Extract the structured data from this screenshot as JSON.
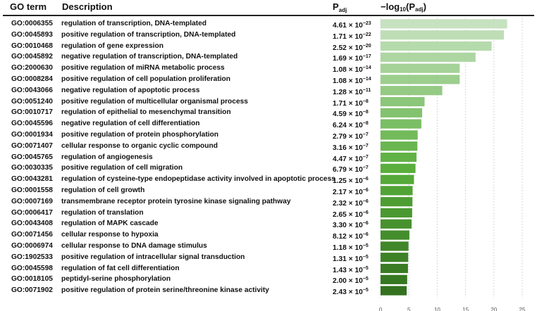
{
  "headers": {
    "go_term": "GO term",
    "description": "Description",
    "padj": "P",
    "padj_sub": "adj",
    "log_prefix": "−log",
    "log_base": "10",
    "log_open": "(P",
    "log_sub": "adj",
    "log_close": ")"
  },
  "chart_data": {
    "type": "bar",
    "orientation": "horizontal",
    "xlabel": "−log10(Padj)",
    "xlim": [
      0,
      25
    ],
    "xticks": [
      0,
      5,
      10,
      15,
      20,
      25
    ],
    "grid": true,
    "categories": [
      "GO:0006355",
      "GO:0045893",
      "GO:0010468",
      "GO:0045892",
      "GO:2000630",
      "GO:0008284",
      "GO:0043066",
      "GO:0051240",
      "GO:0010717",
      "GO:0045596",
      "GO:0001934",
      "GO:0071407",
      "GO:0045765",
      "GO:0030335",
      "GO:0043281",
      "GO:0001558",
      "GO:0007169",
      "GO:0006417",
      "GO:0043408",
      "GO:0071456",
      "GO:0006974",
      "GO:1902533",
      "GO:0045598",
      "GO:0018105",
      "GO:0071902"
    ],
    "rows": [
      {
        "go": "GO:0006355",
        "desc": "regulation of transcription, DNA-templated",
        "p_mant": "4.61",
        "p_exp": "−23",
        "value": 22.34
      },
      {
        "go": "GO:0045893",
        "desc": "positive regulation of transcription, DNA-templated",
        "p_mant": "1.71",
        "p_exp": "−22",
        "value": 21.77
      },
      {
        "go": "GO:0010468",
        "desc": "regulation of gene expression",
        "p_mant": "2.52",
        "p_exp": "−20",
        "value": 19.6
      },
      {
        "go": "GO:0045892",
        "desc": "negative regulation of transcription, DNA-templated",
        "p_mant": "1.69",
        "p_exp": "−17",
        "value": 16.77
      },
      {
        "go": "GO:2000630",
        "desc": "positive regulation of miRNA metabolic process",
        "p_mant": "1.08",
        "p_exp": "−14",
        "value": 13.97
      },
      {
        "go": "GO:0008284",
        "desc": "positive regulation of cell population proliferation",
        "p_mant": "1.08",
        "p_exp": "−14",
        "value": 13.97
      },
      {
        "go": "GO:0043066",
        "desc": "negative regulation of apoptotic process",
        "p_mant": "1.28",
        "p_exp": "−11",
        "value": 10.89
      },
      {
        "go": "GO:0051240",
        "desc": "positive regulation of multicellular organismal process",
        "p_mant": "1.71",
        "p_exp": "−8",
        "value": 7.77
      },
      {
        "go": "GO:0010717",
        "desc": "regulation of epithelial to mesenchymal transition",
        "p_mant": "4.59",
        "p_exp": "−8",
        "value": 7.34
      },
      {
        "go": "GO:0045596",
        "desc": "negative regulation of cell differentiation",
        "p_mant": "6.24",
        "p_exp": "−8",
        "value": 7.2
      },
      {
        "go": "GO:0001934",
        "desc": "positive regulation of protein phosphorylation",
        "p_mant": "2.79",
        "p_exp": "−7",
        "value": 6.55
      },
      {
        "go": "GO:0071407",
        "desc": "cellular response to organic cyclic compound",
        "p_mant": "3.16",
        "p_exp": "−7",
        "value": 6.5
      },
      {
        "go": "GO:0045765",
        "desc": "regulation of angiogenesis",
        "p_mant": "4.47",
        "p_exp": "−7",
        "value": 6.35
      },
      {
        "go": "GO:0030335",
        "desc": "positive regulation of cell migration",
        "p_mant": "6.79",
        "p_exp": "−7",
        "value": 6.17
      },
      {
        "go": "GO:0043281",
        "desc": "regulation of cysteine-type endopeptidase activity involved in apoptotic process",
        "p_mant": "1.25",
        "p_exp": "−6",
        "value": 5.9
      },
      {
        "go": "GO:0001558",
        "desc": "regulation of cell growth",
        "p_mant": "2.17",
        "p_exp": "−6",
        "value": 5.66
      },
      {
        "go": "GO:0007169",
        "desc": "transmembrane receptor protein tyrosine kinase signaling pathway",
        "p_mant": "2.32",
        "p_exp": "−6",
        "value": 5.63
      },
      {
        "go": "GO:0006417",
        "desc": "regulation of translation",
        "p_mant": "2.65",
        "p_exp": "−6",
        "value": 5.58
      },
      {
        "go": "GO:0043408",
        "desc": "regulation of MAPK cascade",
        "p_mant": "3.30",
        "p_exp": "−6",
        "value": 5.48
      },
      {
        "go": "GO:0071456",
        "desc": "cellular response to hypoxia",
        "p_mant": "8.12",
        "p_exp": "−6",
        "value": 5.09
      },
      {
        "go": "GO:0006974",
        "desc": "cellular response to DNA damage stimulus",
        "p_mant": "1.18",
        "p_exp": "−5",
        "value": 4.93
      },
      {
        "go": "GO:1902533",
        "desc": "positive regulation of intracellular signal transduction",
        "p_mant": "1.31",
        "p_exp": "−5",
        "value": 4.88
      },
      {
        "go": "GO:0045598",
        "desc": "regulation of fat cell differentiation",
        "p_mant": "1.43",
        "p_exp": "−5",
        "value": 4.84
      },
      {
        "go": "GO:0018105",
        "desc": "peptidyl-serine phosphorylation",
        "p_mant": "2.00",
        "p_exp": "−5",
        "value": 4.7
      },
      {
        "go": "GO:0071902",
        "desc": "positive regulation of protein serine/threonine kinase activity",
        "p_mant": "2.43",
        "p_exp": "−5",
        "value": 4.61
      }
    ],
    "colors": {
      "light": "#c6e2c0",
      "mid": "#57ad3a",
      "dark": "#33711f"
    }
  }
}
